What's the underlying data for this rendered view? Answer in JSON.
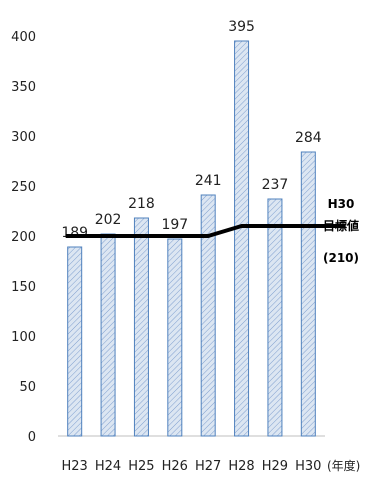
{
  "chart_data": {
    "type": "bar",
    "categories": [
      "H23",
      "H24",
      "H25",
      "H26",
      "H27",
      "H28",
      "H29",
      "H30"
    ],
    "values": [
      189,
      202,
      218,
      197,
      241,
      395,
      237,
      284
    ],
    "ylim": [
      0,
      400
    ],
    "yticks": [
      0,
      50,
      100,
      150,
      200,
      250,
      300,
      350,
      400
    ],
    "x_unit": "(年度)",
    "grid": false,
    "bar_fill": "#dce6f2",
    "bar_stroke": "#4f81bd",
    "target_line": {
      "values": [
        200,
        200,
        200,
        200,
        200,
        210,
        210,
        210
      ],
      "color": "#000000",
      "label_line1": "H30",
      "label_line2": "目標値",
      "label_line3": "(210)"
    }
  }
}
